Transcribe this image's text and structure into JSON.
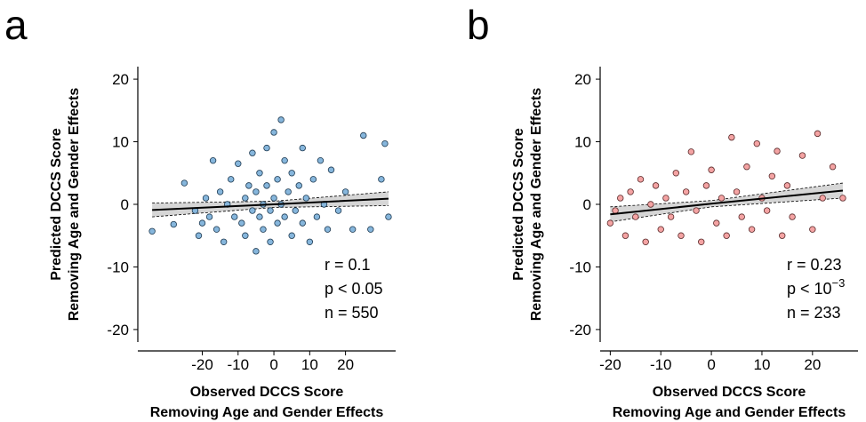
{
  "chart_data": [
    {
      "type": "scatter",
      "panel": "a",
      "xlabel": [
        "Observed DCCS Score",
        "Removing Age and Gender Effects"
      ],
      "ylabel": [
        "Predicted DCCS Score",
        "Removing Age and Gender Effects"
      ],
      "color": "#86b6dc",
      "edgecolor": "#1f3b52",
      "xlim": [
        -38,
        34
      ],
      "ylim": [
        -22,
        22
      ],
      "xticks": [
        -20,
        -10,
        0,
        10,
        20
      ],
      "yticks": [
        -20,
        -10,
        0,
        10,
        20
      ],
      "x": [
        -34,
        -28,
        -25,
        -22,
        -21,
        -20,
        -19,
        -18,
        -17,
        -16,
        -15,
        -14,
        -13,
        -12,
        -11,
        -10,
        -9,
        -8,
        -8,
        -7,
        -6,
        -6,
        -5,
        -5,
        -4,
        -4,
        -3,
        -3,
        -2,
        -2,
        -1,
        -1,
        0,
        0,
        1,
        1,
        2,
        2,
        3,
        3,
        4,
        5,
        5,
        6,
        7,
        8,
        8,
        9,
        10,
        11,
        12,
        13,
        14,
        15,
        16,
        18,
        20,
        22,
        25,
        27,
        30,
        31,
        32
      ],
      "values": [
        -4.3,
        -3.2,
        3.4,
        -1,
        -5,
        -3,
        1,
        -2,
        7,
        -4,
        2,
        -6,
        0,
        4,
        -2,
        6.5,
        -3,
        1,
        -5,
        3,
        -1,
        8.2,
        -7.5,
        2,
        -2,
        5,
        0,
        -4,
        3,
        9,
        -1,
        -6,
        1,
        11.5,
        -3,
        4,
        13.5,
        0,
        -2,
        7,
        2,
        -5,
        5,
        -1,
        3,
        -3,
        9,
        1,
        -6,
        4,
        -2,
        7,
        0,
        -4,
        5.5,
        -1,
        2,
        -4,
        11,
        -4,
        4,
        9.7,
        -2
      ],
      "fit_x": [
        -34,
        0,
        32
      ],
      "fit_y": [
        -0.9,
        0,
        0.9
      ],
      "ci_lower": [
        -2,
        -0.5,
        -0.2
      ],
      "ci_upper": [
        0.2,
        0.5,
        2
      ],
      "annotations": [
        {
          "text": "r = 0.1"
        },
        {
          "text": "p < 0.05"
        },
        {
          "text": "n = 550"
        }
      ]
    },
    {
      "type": "scatter",
      "panel": "b",
      "xlabel": [
        "Observed DCCS Score",
        "Removing Age and Gender Effects"
      ],
      "ylabel": [
        "Predicted DCCS Score",
        "Removing Age and Gender Effects"
      ],
      "color": "#f4a3a3",
      "edgecolor": "#5a2a2a",
      "xlim": [
        -22,
        29
      ],
      "ylim": [
        -22,
        22
      ],
      "xticks": [
        -20,
        -10,
        0,
        10,
        20
      ],
      "yticks": [
        -20,
        -10,
        0,
        10,
        20
      ],
      "x": [
        -20,
        -19,
        -18,
        -17,
        -16,
        -15,
        -14,
        -13,
        -12,
        -11,
        -10,
        -9,
        -8,
        -7,
        -6,
        -5,
        -4,
        -3,
        -2,
        -1,
        0,
        1,
        2,
        3,
        4,
        5,
        6,
        7,
        8,
        9,
        10,
        11,
        12,
        13,
        14,
        15,
        16,
        18,
        20,
        21,
        22,
        24,
        26
      ],
      "values": [
        -3,
        -1,
        1,
        -5,
        2,
        -2,
        4,
        -6,
        0,
        3,
        -4,
        1,
        -2,
        5,
        -5,
        2,
        8.4,
        -1,
        -6,
        3,
        5.5,
        -3,
        1,
        -5,
        10.7,
        2,
        -2,
        6,
        -4,
        9.7,
        1,
        -1,
        4.5,
        8.5,
        -5,
        3,
        -2,
        7.8,
        -4,
        11.3,
        1,
        6,
        1
      ],
      "fit_x": [
        -20,
        0,
        26
      ],
      "fit_y": [
        -1.6,
        0.1,
        2.2
      ],
      "ci_lower": [
        -2.8,
        -0.4,
        1.0
      ],
      "ci_upper": [
        -0.4,
        0.6,
        3.4
      ],
      "annotations": [
        {
          "text": "r = 0.23"
        },
        {
          "text": "p < 10",
          "sup": "−3"
        },
        {
          "text": "n = 233"
        }
      ]
    }
  ]
}
